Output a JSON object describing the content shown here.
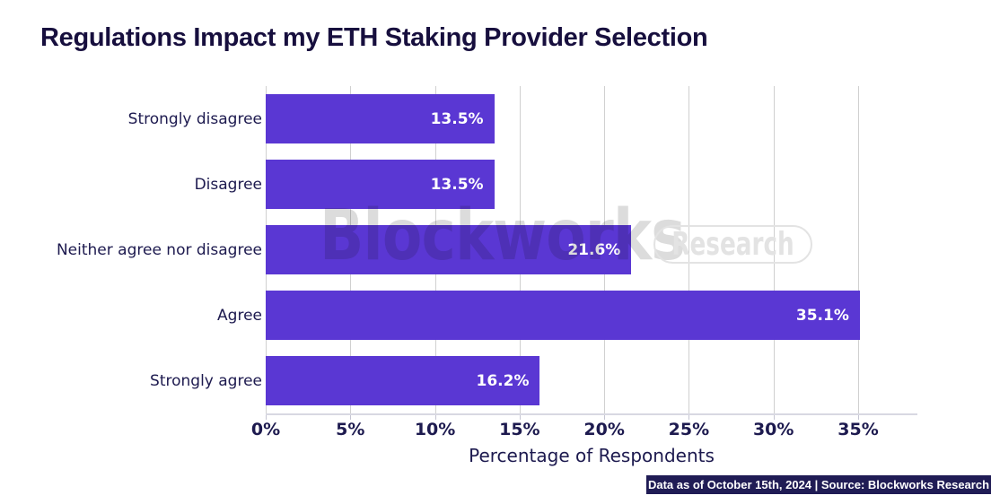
{
  "chart_data": {
    "type": "bar",
    "orientation": "horizontal",
    "title": "Regulations Impact my ETH Staking Provider Selection",
    "categories": [
      "Strongly disagree",
      "Disagree",
      "Neither agree nor disagree",
      "Agree",
      "Strongly agree"
    ],
    "values": [
      13.5,
      13.5,
      21.6,
      35.1,
      16.2
    ],
    "value_labels": [
      "13.5%",
      "13.5%",
      "21.6%",
      "35.1%",
      "16.2%"
    ],
    "xlabel": "Percentage of Respondents",
    "ylabel": "",
    "x_ticks": [
      "0%",
      "5%",
      "10%",
      "15%",
      "20%",
      "25%",
      "30%",
      "35%"
    ],
    "x_tick_values": [
      0,
      5,
      10,
      15,
      20,
      25,
      30,
      35
    ],
    "xlim": [
      0,
      38.5
    ],
    "grid": true,
    "legend": "none",
    "bar_color": "#5a37d3"
  },
  "watermark": {
    "brand": "Blockworks",
    "badge": "Research"
  },
  "footer": {
    "text": "Data as of October 15th, 2024 | Source: Blockworks Research",
    "background": "#201c55",
    "color": "#ffffff"
  },
  "colors": {
    "title": "#170f3e",
    "labels": "#1d1a4f",
    "gridline": "#d0d0d0",
    "bar": "#5a37d3",
    "watermark": "#dcdcdc"
  }
}
